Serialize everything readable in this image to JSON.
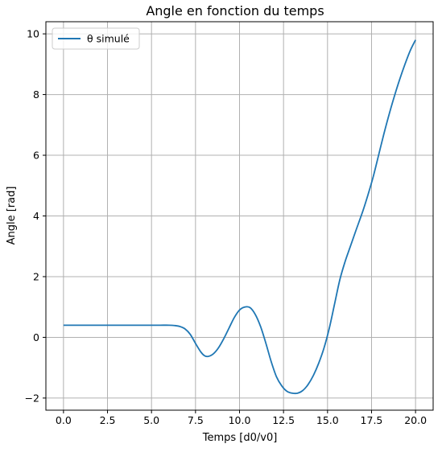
{
  "chart_data": {
    "type": "line",
    "title": "Angle en fonction du temps",
    "xlabel": "Temps [d0/v0]",
    "ylabel": "Angle [rad]",
    "xlim": [
      -1.0,
      21.0
    ],
    "ylim": [
      -2.4,
      10.4
    ],
    "xticks": [
      0.0,
      2.5,
      5.0,
      7.5,
      10.0,
      12.5,
      15.0,
      17.5,
      20.0
    ],
    "xtick_labels": [
      "0.0",
      "2.5",
      "5.0",
      "7.5",
      "10.0",
      "12.5",
      "15.0",
      "17.5",
      "20.0"
    ],
    "yticks": [
      -2,
      0,
      2,
      4,
      6,
      8,
      10
    ],
    "ytick_labels": [
      "−2",
      "0",
      "2",
      "4",
      "6",
      "8",
      "10"
    ],
    "grid": true,
    "legend": "top-left",
    "series": [
      {
        "name": "θ simulé",
        "color": "#1f77b4",
        "x": [
          0,
          1,
          2,
          3,
          4,
          5,
          5.5,
          6,
          6.3,
          6.6,
          6.9,
          7.2,
          7.5,
          7.8,
          8.0,
          8.2,
          8.5,
          8.8,
          9.1,
          9.4,
          9.7,
          10.0,
          10.3,
          10.6,
          10.9,
          11.2,
          11.5,
          11.8,
          12.1,
          12.4,
          12.7,
          13.0,
          13.3,
          13.6,
          13.9,
          14.2,
          14.5,
          14.8,
          15.1,
          15.4,
          15.7,
          16.0,
          16.3,
          16.6,
          17.0,
          17.3,
          17.6,
          17.9,
          18.2,
          18.5,
          18.8,
          19.1,
          19.4,
          19.7,
          20.0
        ],
        "y": [
          0.4,
          0.4,
          0.4,
          0.4,
          0.4,
          0.4,
          0.4,
          0.4,
          0.39,
          0.36,
          0.28,
          0.1,
          -0.2,
          -0.48,
          -0.6,
          -0.63,
          -0.55,
          -0.35,
          -0.05,
          0.3,
          0.65,
          0.9,
          1.0,
          0.98,
          0.75,
          0.35,
          -0.2,
          -0.8,
          -1.3,
          -1.6,
          -1.78,
          -1.84,
          -1.84,
          -1.75,
          -1.55,
          -1.25,
          -0.85,
          -0.35,
          0.3,
          1.1,
          1.9,
          2.5,
          3.0,
          3.5,
          4.15,
          4.7,
          5.3,
          6.0,
          6.7,
          7.35,
          7.95,
          8.5,
          9.0,
          9.45,
          9.8
        ]
      }
    ]
  }
}
